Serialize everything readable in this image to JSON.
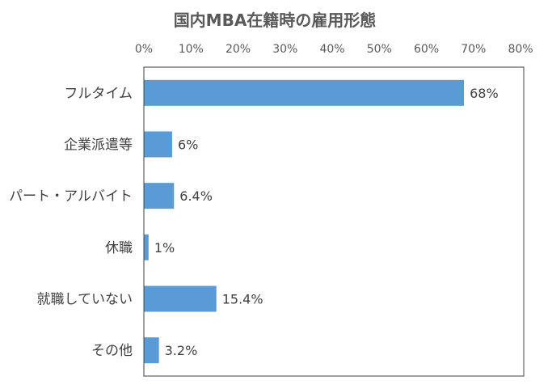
{
  "chart_data": {
    "type": "bar",
    "orientation": "horizontal",
    "title": "国内MBA在籍時の雇用形態",
    "categories": [
      "フルタイム",
      "企業派遣等",
      "パート・アルバイト",
      "休職",
      "就職していない",
      "その他"
    ],
    "values": [
      68,
      6,
      6.4,
      1,
      15.4,
      3.2
    ],
    "value_labels": [
      "68%",
      "6%",
      "6.4%",
      "1%",
      "15.4%",
      "3.2%"
    ],
    "x_ticks": [
      "0%",
      "10%",
      "20%",
      "30%",
      "40%",
      "50%",
      "60%",
      "70%",
      "80%"
    ],
    "xlim": [
      0,
      80
    ],
    "x_axis_position": "top",
    "grid": false,
    "legend": "none",
    "bar_color": "#5b9bd5",
    "frame_color": "#404040"
  }
}
